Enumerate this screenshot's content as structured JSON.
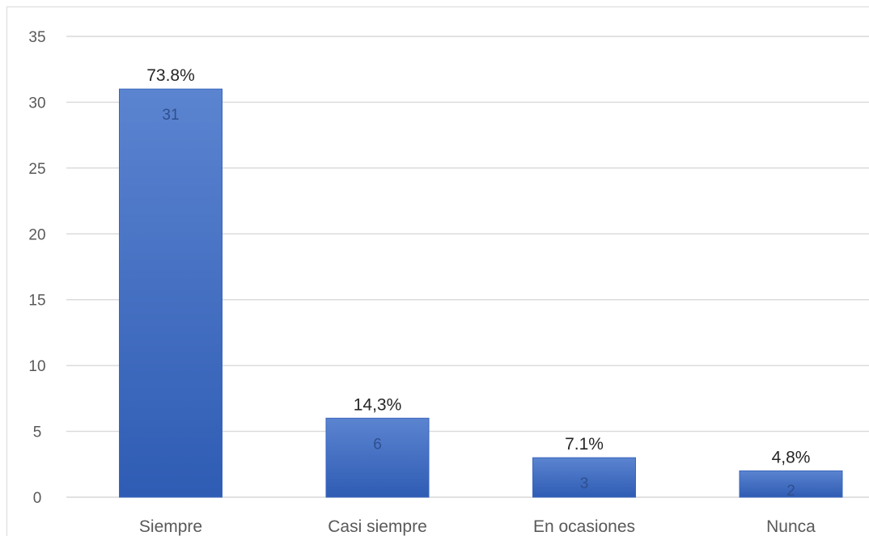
{
  "chart_data": {
    "type": "bar",
    "categories": [
      "Siempre",
      "Casi siempre",
      "En ocasiones",
      "Nunca"
    ],
    "values": [
      31,
      6,
      3,
      2
    ],
    "percent_labels": [
      "73.8%",
      "14,3%",
      "7.1%",
      "4,8%"
    ],
    "value_labels": [
      "31",
      "6",
      "3",
      "2"
    ],
    "ylim": [
      0,
      35
    ],
    "yticks": [
      "0",
      "5",
      "10",
      "15",
      "20",
      "25",
      "30",
      "35"
    ],
    "grid": true,
    "bar_color": "#4472c4",
    "bar_color_dark": "#2e5aac"
  }
}
